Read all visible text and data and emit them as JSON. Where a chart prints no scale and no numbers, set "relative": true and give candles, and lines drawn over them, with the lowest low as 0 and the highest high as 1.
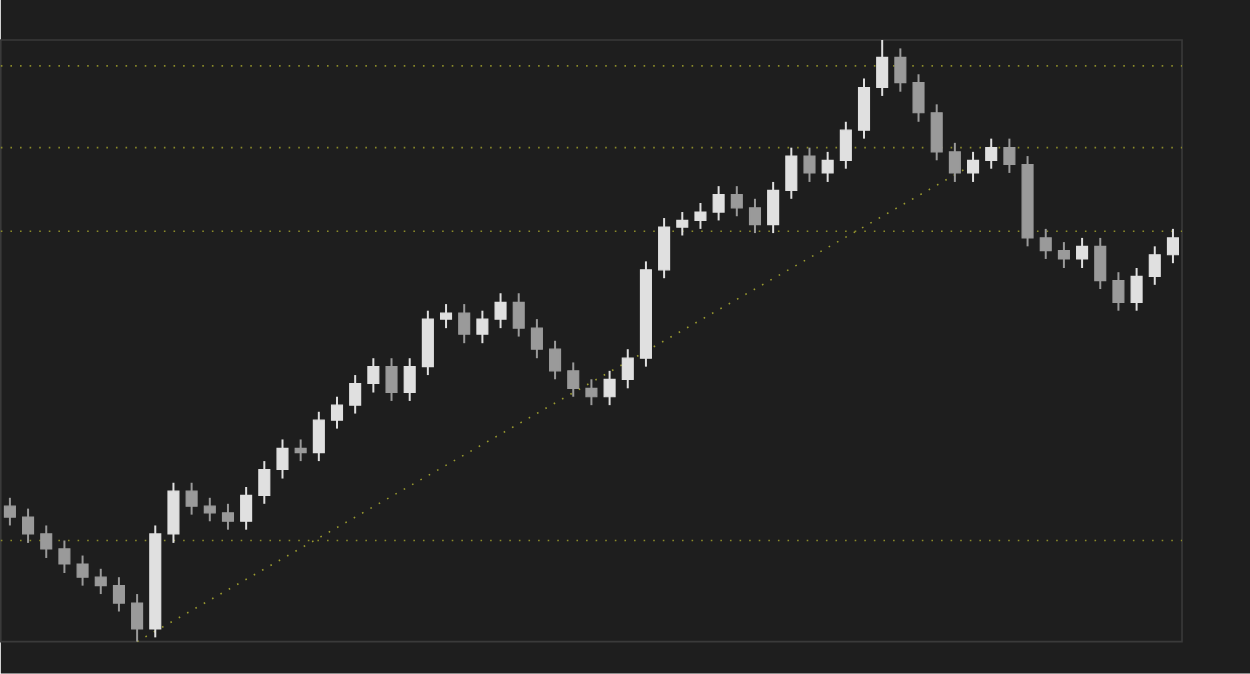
{
  "chart_data": {
    "type": "candlestick",
    "relative": true,
    "tick_labels": false,
    "categories": [
      null,
      null,
      null,
      null,
      null,
      null,
      null,
      null,
      null,
      null,
      null,
      null,
      null,
      null,
      null,
      null,
      null,
      null,
      null,
      null,
      null,
      null,
      null,
      null,
      null,
      null,
      null,
      null,
      null,
      null,
      null,
      null,
      null,
      null,
      null,
      null,
      null,
      null,
      null,
      null,
      null,
      null,
      null,
      null,
      null,
      null,
      null,
      null,
      null,
      null,
      null,
      null,
      null,
      null,
      null,
      null,
      null,
      null,
      null,
      null,
      null,
      null,
      null,
      null,
      null
    ],
    "ohlc": [
      [
        0.225,
        0.239,
        0.193,
        0.207
      ],
      [
        0.207,
        0.221,
        0.164,
        0.179
      ],
      [
        0.179,
        0.193,
        0.139,
        0.154
      ],
      [
        0.154,
        0.168,
        0.114,
        0.129
      ],
      [
        0.129,
        0.143,
        0.093,
        0.107
      ],
      [
        0.107,
        0.121,
        0.079,
        0.093
      ],
      [
        0.093,
        0.107,
        0.05,
        0.064
      ],
      [
        0.064,
        0.079,
        0,
        0.021
      ],
      [
        0.021,
        0.193,
        0.007,
        0.179
      ],
      [
        0.179,
        0.264,
        0.164,
        0.25
      ],
      [
        0.25,
        0.264,
        0.211,
        0.225
      ],
      [
        0.225,
        0.239,
        0.2,
        0.214
      ],
      [
        0.214,
        0.229,
        0.186,
        0.2
      ],
      [
        0.2,
        0.257,
        0.186,
        0.243
      ],
      [
        0.243,
        0.3,
        0.229,
        0.286
      ],
      [
        0.286,
        0.336,
        0.271,
        0.321
      ],
      [
        0.321,
        0.336,
        0.3,
        0.314
      ],
      [
        0.314,
        0.382,
        0.3,
        0.368
      ],
      [
        0.368,
        0.407,
        0.354,
        0.393
      ],
      [
        0.393,
        0.443,
        0.379,
        0.429
      ],
      [
        0.429,
        0.471,
        0.414,
        0.457
      ],
      [
        0.457,
        0.471,
        0.4,
        0.414
      ],
      [
        0.414,
        0.471,
        0.4,
        0.457
      ],
      [
        0.457,
        0.55,
        0.443,
        0.536
      ],
      [
        0.536,
        0.561,
        0.521,
        0.546
      ],
      [
        0.546,
        0.561,
        0.496,
        0.511
      ],
      [
        0.511,
        0.55,
        0.496,
        0.536
      ],
      [
        0.536,
        0.579,
        0.521,
        0.564
      ],
      [
        0.564,
        0.579,
        0.507,
        0.521
      ],
      [
        0.521,
        0.536,
        0.471,
        0.486
      ],
      [
        0.486,
        0.5,
        0.436,
        0.45
      ],
      [
        0.45,
        0.464,
        0.407,
        0.421
      ],
      [
        0.421,
        0.436,
        0.393,
        0.407
      ],
      [
        0.407,
        0.45,
        0.393,
        0.436
      ],
      [
        0.436,
        0.486,
        0.421,
        0.471
      ],
      [
        0.471,
        0.632,
        0.457,
        0.618
      ],
      [
        0.618,
        0.704,
        0.604,
        0.689
      ],
      [
        0.689,
        0.714,
        0.675,
        0.7
      ],
      [
        0.7,
        0.729,
        0.686,
        0.714
      ],
      [
        0.714,
        0.757,
        0.7,
        0.743
      ],
      [
        0.743,
        0.757,
        0.707,
        0.721
      ],
      [
        0.721,
        0.736,
        0.679,
        0.693
      ],
      [
        0.693,
        0.764,
        0.679,
        0.75
      ],
      [
        0.75,
        0.821,
        0.736,
        0.807
      ],
      [
        0.807,
        0.821,
        0.764,
        0.779
      ],
      [
        0.779,
        0.814,
        0.764,
        0.8
      ],
      [
        0.8,
        0.864,
        0.786,
        0.85
      ],
      [
        0.85,
        0.936,
        0.836,
        0.921
      ],
      [
        0.921,
        1,
        0.907,
        0.971
      ],
      [
        0.971,
        0.986,
        0.914,
        0.929
      ],
      [
        0.929,
        0.943,
        0.864,
        0.879
      ],
      [
        0.879,
        0.893,
        0.8,
        0.814
      ],
      [
        0.814,
        0.829,
        0.764,
        0.779
      ],
      [
        0.779,
        0.814,
        0.764,
        0.8
      ],
      [
        0.8,
        0.836,
        0.786,
        0.821
      ],
      [
        0.821,
        0.836,
        0.779,
        0.793
      ],
      [
        0.793,
        0.807,
        0.657,
        0.671
      ],
      [
        0.671,
        0.686,
        0.636,
        0.65
      ],
      [
        0.65,
        0.664,
        0.621,
        0.636
      ],
      [
        0.636,
        0.671,
        0.621,
        0.657
      ],
      [
        0.657,
        0.671,
        0.586,
        0.6
      ],
      [
        0.6,
        0.614,
        0.55,
        0.564
      ],
      [
        0.564,
        0.621,
        0.55,
        0.607
      ],
      [
        0.607,
        0.657,
        0.593,
        0.643
      ],
      [
        0.643,
        0.686,
        0.629,
        0.671
      ]
    ],
    "series": [
      {
        "type": "line",
        "color": "#9a9a30",
        "line_style": "dotted",
        "values": [
          null,
          null,
          null,
          null,
          null,
          null,
          null,
          0.0,
          null,
          null,
          null,
          null,
          null,
          null,
          null,
          null,
          null,
          null,
          null,
          null,
          null,
          null,
          null,
          null,
          null,
          null,
          null,
          null,
          null,
          null,
          null,
          null,
          null,
          null,
          null,
          null,
          null,
          null,
          null,
          null,
          null,
          null,
          null,
          null,
          null,
          null,
          null,
          null,
          null,
          null,
          null,
          null,
          null,
          0.793,
          null,
          null,
          null,
          null,
          null,
          null,
          null,
          null,
          null,
          null,
          null
        ]
      }
    ],
    "ref_lines": [
      {
        "axis": "y",
        "value": 0.957,
        "color": "#8a8a2a",
        "line_style": "dotted"
      },
      {
        "axis": "y",
        "value": 0.821,
        "color": "#8a8a2a",
        "line_style": "dotted"
      },
      {
        "axis": "y",
        "value": 0.682,
        "color": "#8a8a2a",
        "line_style": "dotted"
      },
      {
        "axis": "y",
        "value": 0.168,
        "color": "#8a8a2a",
        "line_style": "dotted"
      }
    ]
  }
}
